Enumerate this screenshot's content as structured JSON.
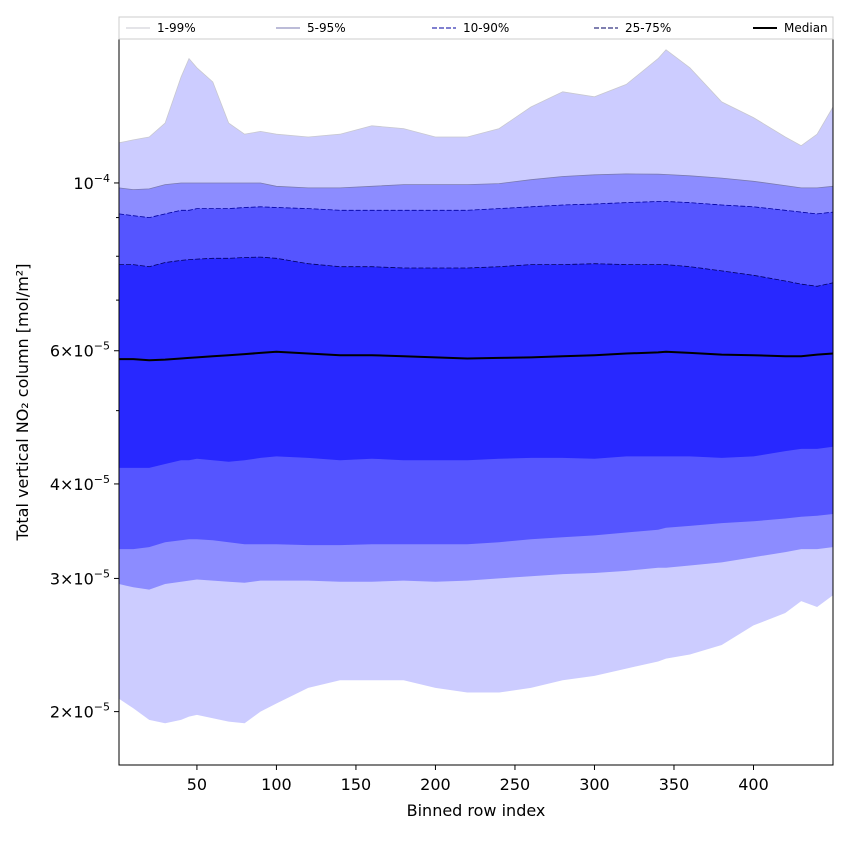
{
  "chart_data": {
    "type": "area",
    "title": "",
    "xlabel": "Binned row index",
    "ylabel": "Total vertical NO₂ column [mol/m²]",
    "xlim": [
      1,
      450
    ],
    "ylim": [
      1.7e-05,
      0.000155
    ],
    "yscale": "log",
    "grid": false,
    "legend_position": "top",
    "x_ticks": [
      50,
      100,
      150,
      200,
      250,
      300,
      350,
      400
    ],
    "y_ticks": [
      {
        "value": 2e-05,
        "mantissa": "2",
        "exponent": "-5"
      },
      {
        "value": 3e-05,
        "mantissa": "3",
        "exponent": "-5"
      },
      {
        "value": 4e-05,
        "mantissa": "4",
        "exponent": "-5"
      },
      {
        "value": 6e-05,
        "mantissa": "6",
        "exponent": "-5"
      },
      {
        "value": 0.0001,
        "mantissa": "10",
        "exponent": "-4"
      }
    ],
    "x": [
      1,
      10,
      20,
      30,
      40,
      45,
      50,
      60,
      70,
      80,
      90,
      100,
      120,
      140,
      160,
      180,
      200,
      220,
      240,
      260,
      280,
      300,
      320,
      340,
      345,
      360,
      380,
      400,
      420,
      430,
      440,
      450
    ],
    "bands": [
      {
        "name": "1-99%",
        "fill": "#ccccff",
        "line_color": "#c8c8d0",
        "line_style": "solid",
        "lower": [
          2.08e-05,
          2.02e-05,
          1.95e-05,
          1.93e-05,
          1.95e-05,
          1.97e-05,
          1.98e-05,
          1.96e-05,
          1.94e-05,
          1.93e-05,
          2e-05,
          2.05e-05,
          2.15e-05,
          2.2e-05,
          2.2e-05,
          2.2e-05,
          2.15e-05,
          2.12e-05,
          2.12e-05,
          2.15e-05,
          2.2e-05,
          2.23e-05,
          2.28e-05,
          2.33e-05,
          2.35e-05,
          2.38e-05,
          2.45e-05,
          2.6e-05,
          2.7e-05,
          2.8e-05,
          2.75e-05,
          2.85e-05
        ],
        "upper": [
          0.000113,
          0.000114,
          0.000115,
          0.00012,
          0.000138,
          0.000146,
          0.000142,
          0.000136,
          0.00012,
          0.000116,
          0.000117,
          0.000116,
          0.000115,
          0.000116,
          0.000119,
          0.000118,
          0.000115,
          0.000115,
          0.000118,
          0.000126,
          0.000132,
          0.00013,
          0.000135,
          0.000146,
          0.00015,
          0.000142,
          0.000128,
          0.000122,
          0.000115,
          0.000112,
          0.000116,
          0.000126
        ]
      },
      {
        "name": "5-95%",
        "fill": "#8c8cff",
        "line_color": "#7a7ab0",
        "line_style": "solid",
        "lower": [
          2.95e-05,
          2.92e-05,
          2.9e-05,
          2.95e-05,
          2.97e-05,
          2.98e-05,
          2.99e-05,
          2.98e-05,
          2.97e-05,
          2.96e-05,
          2.98e-05,
          2.98e-05,
          2.98e-05,
          2.97e-05,
          2.97e-05,
          2.98e-05,
          2.97e-05,
          2.98e-05,
          3e-05,
          3.02e-05,
          3.04e-05,
          3.05e-05,
          3.07e-05,
          3.1e-05,
          3.1e-05,
          3.12e-05,
          3.15e-05,
          3.2e-05,
          3.25e-05,
          3.28e-05,
          3.28e-05,
          3.3e-05
        ],
        "upper": [
          9.85e-05,
          9.8e-05,
          9.82e-05,
          9.95e-05,
          0.0001,
          0.0001,
          0.0001,
          0.0001,
          0.0001,
          0.0001,
          0.0001,
          9.9e-05,
          9.85e-05,
          9.85e-05,
          9.9e-05,
          9.95e-05,
          9.95e-05,
          9.95e-05,
          9.98e-05,
          0.000101,
          0.000102,
          0.0001025,
          0.0001028,
          0.0001027,
          0.0001026,
          0.0001022,
          0.0001015,
          0.0001005,
          9.92e-05,
          9.85e-05,
          9.85e-05,
          9.9e-05
        ]
      },
      {
        "name": "10-90%",
        "fill": "#5555ff",
        "line_color": "#0000a0",
        "line_style": "dashed",
        "lower": [
          3.28e-05,
          3.28e-05,
          3.3e-05,
          3.35e-05,
          3.37e-05,
          3.38e-05,
          3.38e-05,
          3.37e-05,
          3.35e-05,
          3.33e-05,
          3.33e-05,
          3.33e-05,
          3.32e-05,
          3.32e-05,
          3.33e-05,
          3.33e-05,
          3.33e-05,
          3.33e-05,
          3.35e-05,
          3.38e-05,
          3.4e-05,
          3.42e-05,
          3.45e-05,
          3.48e-05,
          3.5e-05,
          3.52e-05,
          3.55e-05,
          3.57e-05,
          3.6e-05,
          3.62e-05,
          3.63e-05,
          3.65e-05
        ],
        "upper": [
          9.1e-05,
          9.05e-05,
          9e-05,
          9.1e-05,
          9.2e-05,
          9.2e-05,
          9.25e-05,
          9.25e-05,
          9.25e-05,
          9.28e-05,
          9.3e-05,
          9.28e-05,
          9.25e-05,
          9.2e-05,
          9.2e-05,
          9.2e-05,
          9.2e-05,
          9.2e-05,
          9.25e-05,
          9.3e-05,
          9.35e-05,
          9.38e-05,
          9.42e-05,
          9.45e-05,
          9.45e-05,
          9.42e-05,
          9.35e-05,
          9.3e-05,
          9.2e-05,
          9.15e-05,
          9.1e-05,
          9.15e-05
        ]
      },
      {
        "name": "25-75%",
        "fill": "#2828ff",
        "line_color": "#000060",
        "line_style": "dashed",
        "lower": [
          4.2e-05,
          4.2e-05,
          4.2e-05,
          4.25e-05,
          4.3e-05,
          4.3e-05,
          4.32e-05,
          4.3e-05,
          4.28e-05,
          4.3e-05,
          4.33e-05,
          4.35e-05,
          4.33e-05,
          4.3e-05,
          4.32e-05,
          4.3e-05,
          4.3e-05,
          4.3e-05,
          4.32e-05,
          4.33e-05,
          4.33e-05,
          4.32e-05,
          4.35e-05,
          4.35e-05,
          4.35e-05,
          4.35e-05,
          4.33e-05,
          4.35e-05,
          4.42e-05,
          4.45e-05,
          4.45e-05,
          4.48e-05
        ],
        "upper": [
          7.8e-05,
          7.8e-05,
          7.75e-05,
          7.85e-05,
          7.9e-05,
          7.92e-05,
          7.93e-05,
          7.95e-05,
          7.95e-05,
          7.97e-05,
          7.98e-05,
          7.95e-05,
          7.82e-05,
          7.75e-05,
          7.75e-05,
          7.72e-05,
          7.72e-05,
          7.72e-05,
          7.75e-05,
          7.8e-05,
          7.8e-05,
          7.82e-05,
          7.8e-05,
          7.8e-05,
          7.8e-05,
          7.75e-05,
          7.65e-05,
          7.55e-05,
          7.42e-05,
          7.35e-05,
          7.3e-05,
          7.38e-05
        ]
      }
    ],
    "median": {
      "name": "Median",
      "color": "#000000",
      "values": [
        5.85e-05,
        5.85e-05,
        5.83e-05,
        5.84e-05,
        5.86e-05,
        5.87e-05,
        5.88e-05,
        5.9e-05,
        5.92e-05,
        5.94e-05,
        5.96e-05,
        5.98e-05,
        5.95e-05,
        5.92e-05,
        5.92e-05,
        5.9e-05,
        5.88e-05,
        5.86e-05,
        5.87e-05,
        5.88e-05,
        5.9e-05,
        5.92e-05,
        5.95e-05,
        5.97e-05,
        5.98e-05,
        5.96e-05,
        5.93e-05,
        5.92e-05,
        5.9e-05,
        5.9e-05,
        5.93e-05,
        5.95e-05
      ]
    }
  }
}
